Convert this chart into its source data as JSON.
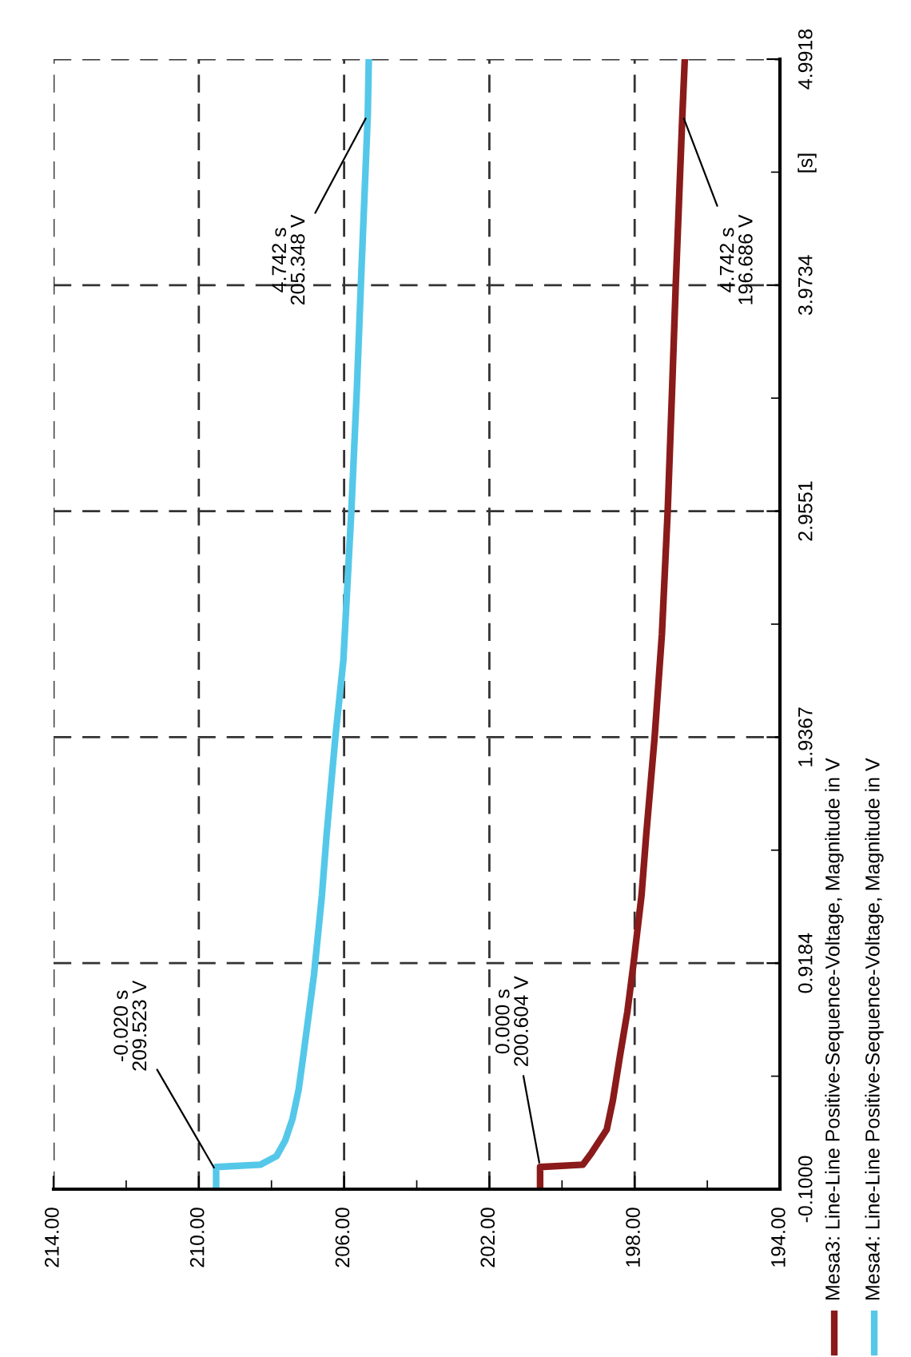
{
  "chart_data": {
    "type": "line",
    "ylabel": "[s]",
    "xlim": [
      214,
      194
    ],
    "ylim": [
      -0.1,
      4.9918
    ],
    "yticks": [
      {
        "value": -0.1,
        "label": "-0.1000"
      },
      {
        "value": 0.4092,
        "label": null
      },
      {
        "value": 0.9184,
        "label": "0.9184"
      },
      {
        "value": 1.4276,
        "label": null
      },
      {
        "value": 1.9367,
        "label": "1.9367"
      },
      {
        "value": 2.4459,
        "label": null
      },
      {
        "value": 2.9551,
        "label": "2.9551"
      },
      {
        "value": 3.4643,
        "label": null
      },
      {
        "value": 3.9734,
        "label": "3.9734"
      },
      {
        "value": 4.4826,
        "label": null
      },
      {
        "value": 4.9918,
        "label": "4.9918"
      }
    ],
    "xticks": [
      {
        "value": 194,
        "label": "194.00"
      },
      {
        "value": 196,
        "label": null
      },
      {
        "value": 198,
        "label": "198.00"
      },
      {
        "value": 200,
        "label": null
      },
      {
        "value": 202,
        "label": "202.00"
      },
      {
        "value": 204,
        "label": null
      },
      {
        "value": 206,
        "label": "206.00"
      },
      {
        "value": 208,
        "label": null
      },
      {
        "value": 210,
        "label": "210.00"
      },
      {
        "value": 212,
        "label": null
      },
      {
        "value": 214,
        "label": "214.00"
      }
    ],
    "grid": true,
    "legend": "bottom",
    "line_style": "solid",
    "marker": "none",
    "series": [
      {
        "name": "Mesa3: Line-Line Positive-Sequence-Voltage, Magnitude in V",
        "color": "#8b1a1a",
        "values": [
          -0.1,
          0.0,
          0.01,
          0.06,
          0.168,
          0.3,
          0.505,
          0.7,
          0.918,
          1.225,
          1.5,
          1.937,
          2.4,
          2.958,
          3.5,
          3.97,
          4.742,
          4.9918
        ],
        "x": [
          200.604,
          200.604,
          199.43,
          199.2,
          198.77,
          198.6,
          198.4,
          198.2,
          198.03,
          197.81,
          197.68,
          197.45,
          197.25,
          197.09,
          196.97,
          196.87,
          196.686,
          196.62
        ]
      },
      {
        "name": "Mesa4: Line-Line Positive-Sequence-Voltage, Magnitude in V",
        "color": "#55c8ea",
        "values": [
          -0.1,
          -0.02,
          0.0,
          0.01,
          0.049,
          0.12,
          0.217,
          0.35,
          0.505,
          0.865,
          1.225,
          1.5,
          1.937,
          2.283,
          2.958,
          3.5,
          3.97,
          4.742,
          4.9918
        ],
        "x": [
          209.523,
          209.523,
          209.523,
          208.31,
          207.86,
          207.62,
          207.42,
          207.25,
          207.12,
          206.83,
          206.61,
          206.48,
          206.24,
          206.02,
          205.8,
          205.65,
          205.54,
          205.348,
          205.32
        ]
      }
    ],
    "annotations": [
      {
        "text": "-0.020 s\n209.523 V",
        "x": 209.523,
        "y": -0.02
      },
      {
        "text": "0.000 s\n200.604 V",
        "x": 200.604,
        "y": 0.0
      },
      {
        "text": "4.742 s\n205.348 V",
        "x": 205.348,
        "y": 4.742
      },
      {
        "text": "4.742 s\n196.686 V",
        "x": 196.686,
        "y": 4.742
      }
    ]
  }
}
